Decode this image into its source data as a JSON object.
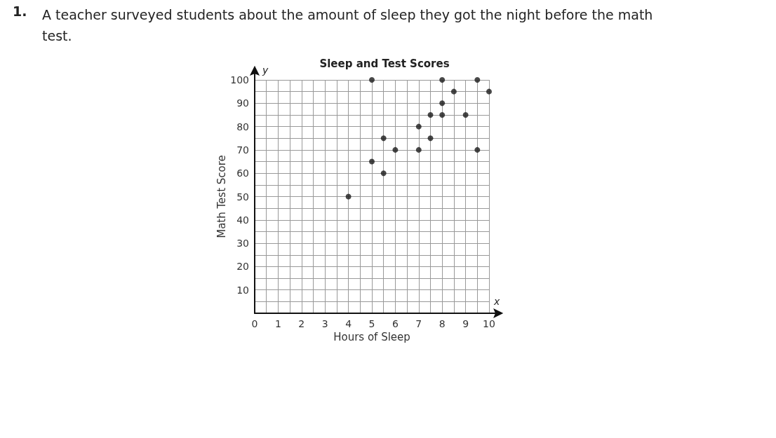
{
  "chart_data": {
    "type": "scatter",
    "title": "Sleep and Test Scores",
    "xlabel": "Hours of Sleep",
    "ylabel": "Math Test Score",
    "annotations": [
      "1.",
      "A teacher surveyed students about the amount of sleep they got the night before the math test.",
      "y",
      "x"
    ],
    "x": [
      5,
      8,
      9.5,
      8.5,
      10,
      8,
      7.5,
      8,
      9,
      7,
      5.5,
      7.5,
      6,
      7,
      9.5,
      5,
      5.5,
      4
    ],
    "values": [
      100,
      100,
      100,
      95,
      95,
      90,
      85,
      85,
      85,
      80,
      75,
      75,
      70,
      70,
      70,
      65,
      60,
      50
    ],
    "color": "#1a1a1a",
    "marker": "circle",
    "xlim": [
      0,
      10
    ],
    "xticks": [
      {
        "value": 0,
        "label": "0"
      },
      1,
      2,
      3,
      4,
      5,
      6,
      7,
      8,
      9,
      10
    ],
    "ylim": [
      0,
      100
    ],
    "yticks": [
      {
        "value": 0,
        "label": null
      },
      10,
      20,
      30,
      40,
      50,
      60,
      70,
      80,
      90,
      100
    ],
    "grid": true
  }
}
